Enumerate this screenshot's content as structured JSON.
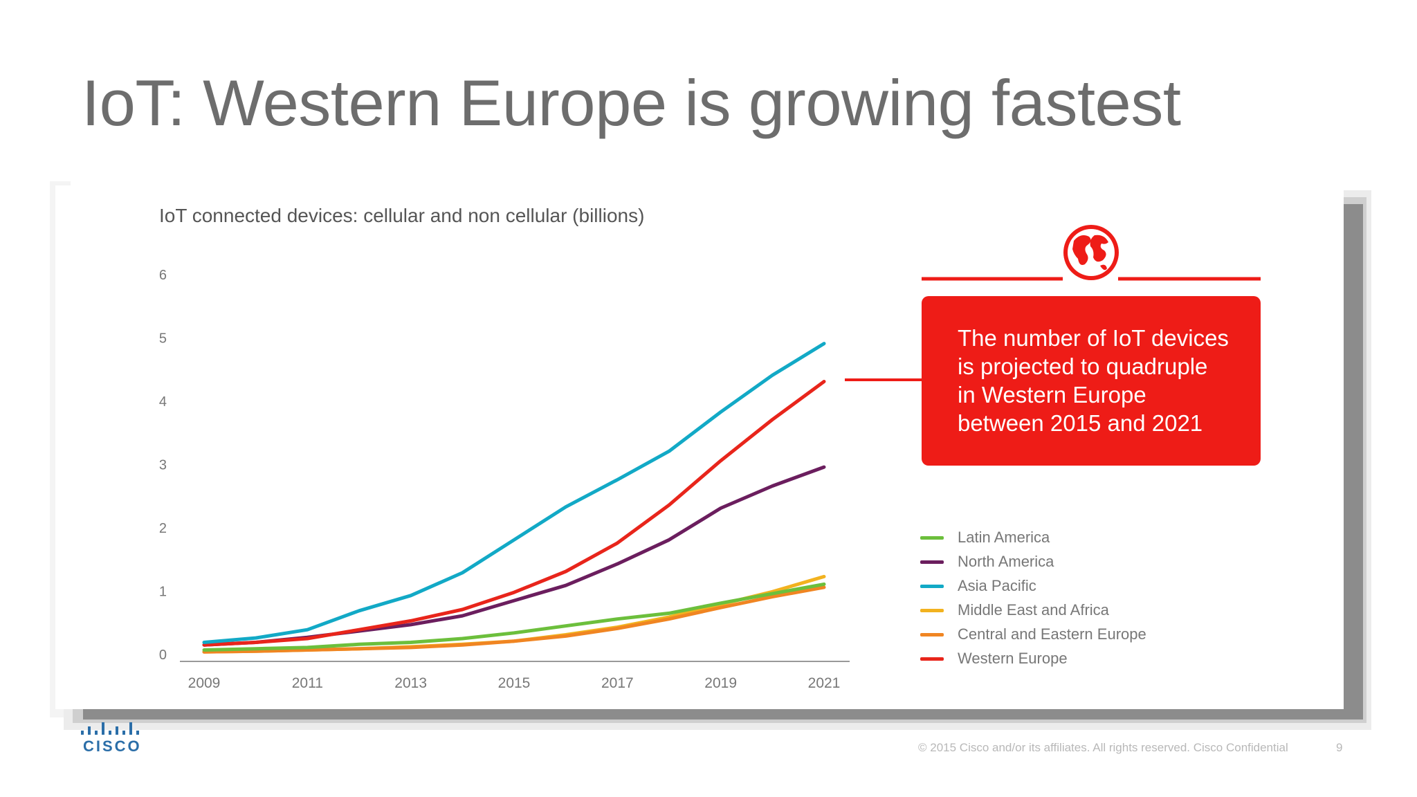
{
  "slide": {
    "title": "IoT: Western Europe is growing fastest",
    "footer": "© 2015  Cisco and/or its affiliates. All rights reserved.    Cisco Confidential",
    "page_number": "9",
    "logo_text": "CISCO"
  },
  "callout": {
    "text": "The number of IoT devices\nis projected to quadruple\nin Western Europe\nbetween 2015 and 2021"
  },
  "colors": {
    "accent": "#ee1c17",
    "axis": "#999999",
    "tick_label": "#777777",
    "cisco_blue": "#2b6ea8"
  },
  "chart_data": {
    "type": "line",
    "title": "IoT connected devices: cellular and non cellular (billions)",
    "xlabel": "",
    "ylabel": "",
    "x": [
      2009,
      2010,
      2011,
      2012,
      2013,
      2014,
      2015,
      2016,
      2017,
      2018,
      2019,
      2020,
      2021
    ],
    "xticks": [
      "2009",
      "2011",
      "2013",
      "2015",
      "2017",
      "2019",
      "2021"
    ],
    "yticks": [
      "0",
      "1",
      "2",
      "3",
      "4",
      "5",
      "6"
    ],
    "ylim": [
      0,
      6
    ],
    "xlim": [
      2009,
      2021
    ],
    "grid": false,
    "legend_position": "right",
    "series": [
      {
        "name": "Latin America",
        "color": "#6cbf3c",
        "values": [
          0.06,
          0.08,
          0.1,
          0.15,
          0.18,
          0.24,
          0.33,
          0.44,
          0.55,
          0.64,
          0.8,
          0.95,
          1.1
        ]
      },
      {
        "name": "North America",
        "color": "#6b1e5e",
        "values": [
          0.14,
          0.18,
          0.26,
          0.36,
          0.46,
          0.6,
          0.84,
          1.08,
          1.42,
          1.8,
          2.3,
          2.65,
          2.95
        ]
      },
      {
        "name": "Asia Pacific",
        "color": "#12a9c6",
        "values": [
          0.18,
          0.25,
          0.38,
          0.68,
          0.92,
          1.28,
          1.8,
          2.32,
          2.75,
          3.2,
          3.82,
          4.4,
          4.9
        ]
      },
      {
        "name": "Middle East and Africa",
        "color": "#f2b21f",
        "values": [
          0.03,
          0.04,
          0.06,
          0.08,
          0.11,
          0.15,
          0.2,
          0.3,
          0.42,
          0.58,
          0.78,
          0.98,
          1.22
        ]
      },
      {
        "name": "Central and Eastern Europe",
        "color": "#f08522",
        "values": [
          0.03,
          0.04,
          0.06,
          0.08,
          0.1,
          0.14,
          0.2,
          0.28,
          0.4,
          0.55,
          0.73,
          0.9,
          1.05
        ]
      },
      {
        "name": "Western Europe",
        "color": "#e8251b",
        "values": [
          0.14,
          0.18,
          0.24,
          0.38,
          0.52,
          0.7,
          0.97,
          1.3,
          1.75,
          2.35,
          3.05,
          3.7,
          4.3
        ]
      }
    ]
  }
}
